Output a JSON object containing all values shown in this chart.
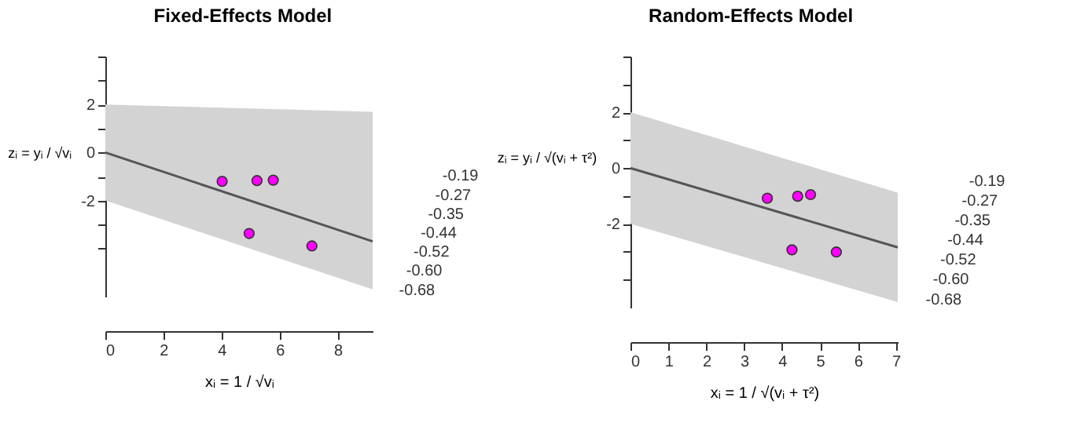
{
  "chart_data": [
    {
      "type": "scatter",
      "title": "Fixed-Effects Model",
      "xlabel": "xᵢ = 1 / √vᵢ",
      "ylabel": "zᵢ = yᵢ / √vᵢ",
      "xlim": [
        0,
        9.2
      ],
      "ylim": [
        -6,
        4
      ],
      "xticks": [
        0,
        2,
        4,
        6,
        8
      ],
      "yticks": [
        {
          "value": -4,
          "label": null
        },
        {
          "value": -3,
          "label": null
        },
        -2,
        {
          "value": -1,
          "label": null
        },
        0,
        {
          "value": 1,
          "label": null
        },
        2,
        {
          "value": 3,
          "label": null
        },
        {
          "value": 4,
          "label": null
        }
      ],
      "grid": false,
      "series": [
        {
          "type": "line",
          "marker": "none",
          "color": "#555555",
          "x": [
            0,
            9.2
          ],
          "values": [
            0,
            -3.7
          ],
          "lower": [
            -2,
            -5.7
          ],
          "upper": [
            2,
            1.7
          ]
        },
        {
          "type": "scatter",
          "marker": "circle",
          "color": "#ff00ff",
          "x": [
            4.02,
            5.22,
            5.78,
            4.95,
            7.11
          ],
          "values": [
            -1.2,
            -1.17,
            -1.15,
            -3.37,
            -3.89
          ]
        }
      ],
      "annotations": [
        "-0.19",
        "-0.27",
        "-0.35",
        "-0.44",
        "-0.52",
        "-0.60",
        "-0.68"
      ]
    },
    {
      "type": "scatter",
      "title": "Random-Effects Model",
      "xlabel": "xᵢ = 1 / √(vᵢ + τ²)",
      "ylabel": "zᵢ = yᵢ / √(vᵢ + τ²)",
      "xlim": [
        0,
        7.05
      ],
      "ylim": [
        -5,
        4
      ],
      "xticks": [
        0,
        1,
        2,
        3,
        4,
        5,
        6,
        7
      ],
      "yticks": [
        {
          "value": -4,
          "label": null
        },
        {
          "value": -3,
          "label": null
        },
        -2,
        {
          "value": -1,
          "label": null
        },
        0,
        {
          "value": 1,
          "label": null
        },
        2,
        {
          "value": 3,
          "label": null
        },
        {
          "value": 4,
          "label": null
        }
      ],
      "grid": false,
      "series": [
        {
          "type": "line",
          "marker": "none",
          "color": "#555555",
          "x": [
            0,
            7.05
          ],
          "values": [
            0,
            -2.84
          ],
          "lower": [
            -2,
            -4.8
          ],
          "upper": [
            2,
            -0.88
          ]
        },
        {
          "type": "scatter",
          "marker": "circle",
          "color": "#ff00ff",
          "x": [
            3.61,
            4.41,
            4.75,
            4.26,
            5.43
          ],
          "values": [
            -1.08,
            -1.01,
            -0.95,
            -2.93,
            -3.01
          ]
        }
      ],
      "annotations": [
        "-0.19",
        "-0.27",
        "-0.35",
        "-0.44",
        "-0.52",
        "-0.60",
        "-0.68"
      ]
    }
  ]
}
